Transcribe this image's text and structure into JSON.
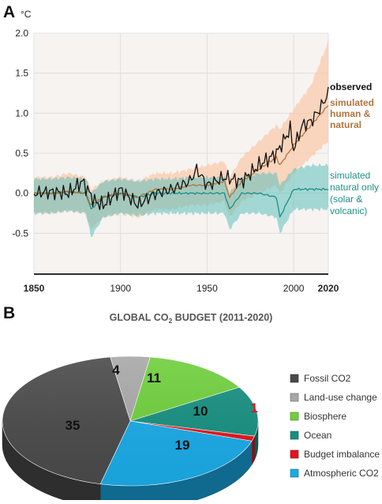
{
  "panel_a": {
    "letter": "A",
    "y_unit": "°C",
    "y_ticks": [
      "2.0",
      "1.5",
      "1.0",
      "0.5",
      "0.0",
      "-0.5"
    ],
    "x_ticks": [
      "1850",
      "1900",
      "1950",
      "2000",
      "2020"
    ],
    "labels": {
      "observed": "observed",
      "simulated_human": [
        "simulated",
        "human &",
        "natural"
      ],
      "simulated_natural": [
        "simulated",
        "natural only",
        "(solar &",
        "volcanic)"
      ]
    }
  },
  "panel_b": {
    "letter": "B",
    "title_prefix": "GLOBAL CO",
    "title_sub": "2",
    "title_suffix": " BUDGET (2011-2020)"
  },
  "colors": {
    "observed": "#111111",
    "human_line": "#b2743d",
    "human_band": "#f9cbab",
    "natural_line": "#1c8f86",
    "natural_band": "#5fbfbc",
    "plot_bg": "#f6f3f1",
    "fossil": "#4a4a4a",
    "land_use": "#a8a8a8",
    "biosphere": "#6fcf3c",
    "ocean": "#168f80",
    "imbalance": "#e3151b",
    "atmospheric": "#1aaae6"
  },
  "chart_data": [
    {
      "type": "line",
      "title": "",
      "xlabel": "",
      "ylabel": "°C",
      "xlim": [
        1850,
        2020
      ],
      "ylim": [
        -1.0,
        2.0
      ],
      "x_ticks": [
        1850,
        1900,
        1950,
        2000,
        2020
      ],
      "y_ticks": [
        2.0,
        1.5,
        1.0,
        0.5,
        0.0,
        -0.5
      ],
      "grid": true,
      "series": [
        {
          "name": "observed",
          "x": [
            1850,
            1860,
            1870,
            1878,
            1885,
            1890,
            1900,
            1910,
            1920,
            1930,
            1940,
            1944,
            1950,
            1960,
            1970,
            1980,
            1990,
            1998,
            2000,
            2005,
            2010,
            2015,
            2020
          ],
          "values": [
            0.0,
            0.02,
            0.0,
            0.15,
            -0.1,
            -0.15,
            0.05,
            -0.15,
            0.0,
            0.05,
            0.15,
            0.3,
            0.1,
            0.2,
            0.15,
            0.35,
            0.5,
            0.8,
            0.55,
            0.85,
            0.9,
            1.05,
            1.25
          ]
        },
        {
          "name": "simulated human & natural",
          "x": [
            1850,
            1860,
            1870,
            1880,
            1883,
            1890,
            1900,
            1910,
            1920,
            1930,
            1940,
            1950,
            1960,
            1963,
            1970,
            1980,
            1990,
            1992,
            2000,
            2010,
            2020
          ],
          "values": [
            0.0,
            0.0,
            0.02,
            0.0,
            -0.15,
            -0.05,
            0.0,
            -0.05,
            0.05,
            0.05,
            0.1,
            0.1,
            0.15,
            -0.05,
            0.15,
            0.3,
            0.45,
            0.35,
            0.6,
            0.85,
            1.1
          ],
          "range_low": [
            -0.25,
            -0.25,
            -0.22,
            -0.25,
            -0.45,
            -0.3,
            -0.25,
            -0.3,
            -0.2,
            -0.2,
            -0.15,
            -0.15,
            -0.1,
            -0.3,
            -0.1,
            0.0,
            0.1,
            0.0,
            0.25,
            0.45,
            0.65
          ],
          "range_high": [
            0.2,
            0.2,
            0.25,
            0.2,
            0.05,
            0.15,
            0.2,
            0.15,
            0.25,
            0.25,
            0.3,
            0.35,
            0.4,
            0.2,
            0.45,
            0.65,
            0.85,
            0.8,
            1.05,
            1.35,
            1.9
          ]
        },
        {
          "name": "simulated natural only (solar & volcanic)",
          "x": [
            1850,
            1860,
            1870,
            1880,
            1883,
            1890,
            1900,
            1910,
            1920,
            1930,
            1940,
            1950,
            1960,
            1963,
            1970,
            1980,
            1990,
            1992,
            2000,
            2010,
            2020
          ],
          "values": [
            0.0,
            0.0,
            0.02,
            0.0,
            -0.2,
            -0.05,
            0.0,
            -0.05,
            0.0,
            0.0,
            0.0,
            0.0,
            0.0,
            -0.2,
            0.0,
            0.0,
            -0.05,
            -0.3,
            0.05,
            0.05,
            0.05
          ],
          "range_low": [
            -0.25,
            -0.25,
            -0.22,
            -0.25,
            -0.55,
            -0.3,
            -0.25,
            -0.28,
            -0.25,
            -0.25,
            -0.25,
            -0.25,
            -0.25,
            -0.45,
            -0.25,
            -0.25,
            -0.3,
            -0.5,
            -0.2,
            -0.2,
            -0.2
          ],
          "range_high": [
            0.18,
            0.18,
            0.2,
            0.18,
            0.0,
            0.15,
            0.18,
            0.15,
            0.18,
            0.18,
            0.2,
            0.2,
            0.2,
            0.0,
            0.2,
            0.25,
            0.25,
            0.1,
            0.3,
            0.35,
            0.35
          ]
        }
      ]
    },
    {
      "type": "pie",
      "title": "GLOBAL CO2 BUDGET (2011-2020)",
      "legend_position": "right",
      "slices": [
        {
          "name": "Land-use change",
          "value": 4,
          "label": "4",
          "color": "#a8a8a8",
          "label_color": "#111111"
        },
        {
          "name": "Biosphere",
          "value": 11,
          "label": "11",
          "color": "#6fcf3c",
          "label_color": "#111111"
        },
        {
          "name": "Ocean",
          "value": 10,
          "label": "10",
          "color": "#168f80",
          "label_color": "#111111"
        },
        {
          "name": "Budget imbalance",
          "value": 1,
          "label": "1",
          "color": "#e3151b",
          "label_color": "#e3151b"
        },
        {
          "name": "Atmospheric CO2",
          "value": 19,
          "label": "19",
          "color": "#1aaae6",
          "label_color": "#111111"
        },
        {
          "name": "Fossil CO2",
          "value": 35,
          "label": "35",
          "color": "#4a4a4a",
          "label_color": "#111111"
        }
      ],
      "legend": [
        {
          "label": "Fossil CO2",
          "color": "#4a4a4a"
        },
        {
          "label": "Land-use change",
          "color": "#a8a8a8"
        },
        {
          "label": "Biosphere",
          "color": "#6fcf3c"
        },
        {
          "label": "Ocean",
          "color": "#168f80"
        },
        {
          "label": "Budget imbalance",
          "color": "#e3151b"
        },
        {
          "label": "Atmospheric CO2",
          "color": "#1aaae6"
        }
      ]
    }
  ]
}
